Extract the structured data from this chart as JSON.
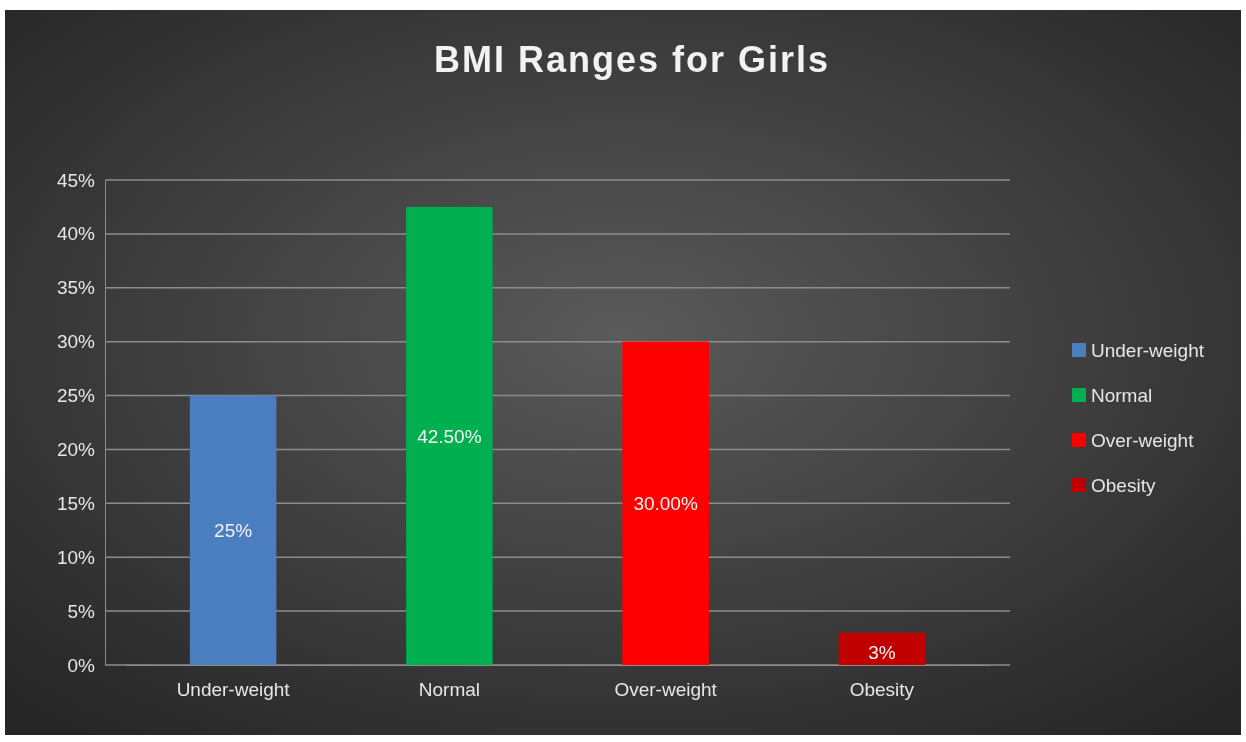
{
  "chart_data": {
    "type": "bar",
    "title": "BMI Ranges for Girls",
    "categories": [
      "Under-weight",
      "Normal",
      "Over-weight",
      "Obesity"
    ],
    "series": [
      {
        "name": "Under-weight",
        "color": "#4a7ebf",
        "values": [
          25,
          null,
          null,
          null
        ],
        "value_labels": [
          "25%",
          null,
          null,
          null
        ]
      },
      {
        "name": "Normal",
        "color": "#00b050",
        "values": [
          null,
          42.5,
          null,
          null
        ],
        "value_labels": [
          null,
          "42.50%",
          null,
          null
        ]
      },
      {
        "name": "Over-weight",
        "color": "#ff0000",
        "values": [
          null,
          null,
          30,
          null
        ],
        "value_labels": [
          null,
          null,
          "30.00%",
          null
        ]
      },
      {
        "name": "Obesity",
        "color": "#c00000",
        "values": [
          null,
          null,
          null,
          3
        ],
        "value_labels": [
          null,
          null,
          null,
          "3%"
        ]
      }
    ],
    "ylim": [
      0,
      45
    ],
    "yticks": [
      {
        "value": 0,
        "label": "0%"
      },
      {
        "value": 5,
        "label": "5%"
      },
      {
        "value": 10,
        "label": "10%"
      },
      {
        "value": 15,
        "label": "15%"
      },
      {
        "value": 20,
        "label": "20%"
      },
      {
        "value": 25,
        "label": "25%"
      },
      {
        "value": 30,
        "label": "30%"
      },
      {
        "value": 35,
        "label": "35%"
      },
      {
        "value": 40,
        "label": "40%"
      },
      {
        "value": 45,
        "label": "45%"
      }
    ],
    "grid": "y",
    "legend": "right"
  }
}
